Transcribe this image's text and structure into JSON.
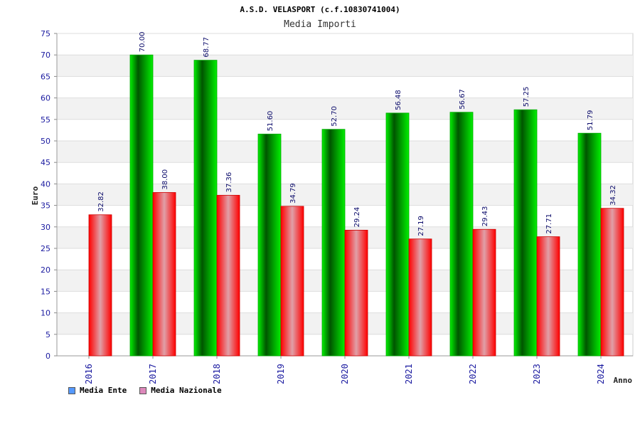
{
  "chart_data": {
    "type": "bar",
    "title": "A.S.D. VELASPORT (c.f.10830741004)",
    "subtitle": "Media Importi",
    "xlabel": "Anno",
    "ylabel": "Euro",
    "ylim": [
      0,
      75
    ],
    "ytick_step": 5,
    "categories": [
      "2016",
      "2017",
      "2018",
      "2019",
      "2020",
      "2021",
      "2022",
      "2023",
      "2024"
    ],
    "series": [
      {
        "name": "Media Ente",
        "values": [
          null,
          70.0,
          68.77,
          51.6,
          52.7,
          56.48,
          56.67,
          57.25,
          51.79
        ],
        "color": "#00cc00",
        "legend_color": "#5599ff"
      },
      {
        "name": "Media Nazionale",
        "values": [
          32.82,
          38.0,
          37.36,
          34.79,
          29.24,
          27.19,
          29.43,
          27.71,
          34.32
        ],
        "color": "#ff0000",
        "legend_color": "#dd88bb"
      }
    ],
    "value_labels": [
      [
        "",
        "70.00",
        "68.77",
        "51.60",
        "52.70",
        "56.48",
        "56.67",
        "57.25",
        "51.79"
      ],
      [
        "32.82",
        "38.00",
        "37.36",
        "34.79",
        "29.24",
        "27.19",
        "29.43",
        "27.71",
        "34.32"
      ]
    ],
    "grid": true,
    "legend_position": "bottom-left"
  }
}
